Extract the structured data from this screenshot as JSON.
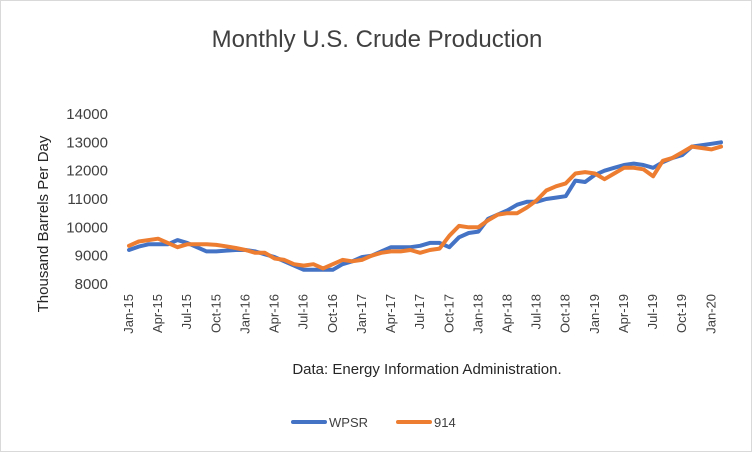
{
  "chart_data": {
    "type": "line",
    "title": "Monthly U.S. Crude Production",
    "ylabel": "Thousand Barrels Per Day",
    "note": "Data: Energy Information Administration.",
    "ylim": [
      8000,
      14000
    ],
    "yticks": [
      "8000",
      "9000",
      "10000",
      "11000",
      "12000",
      "13000",
      "14000"
    ],
    "grid": false,
    "legend_position": "bottom",
    "x": [
      "Jan-15",
      "Feb-15",
      "Mar-15",
      "Apr-15",
      "May-15",
      "Jun-15",
      "Jul-15",
      "Aug-15",
      "Sep-15",
      "Oct-15",
      "Nov-15",
      "Dec-15",
      "Jan-16",
      "Feb-16",
      "Mar-16",
      "Apr-16",
      "May-16",
      "Jun-16",
      "Jul-16",
      "Aug-16",
      "Sep-16",
      "Oct-16",
      "Nov-16",
      "Dec-16",
      "Jan-17",
      "Feb-17",
      "Mar-17",
      "Apr-17",
      "May-17",
      "Jun-17",
      "Jul-17",
      "Aug-17",
      "Sep-17",
      "Oct-17",
      "Nov-17",
      "Dec-17",
      "Jan-18",
      "Feb-18",
      "Mar-18",
      "Apr-18",
      "May-18",
      "Jun-18",
      "Jul-18",
      "Aug-18",
      "Sep-18",
      "Oct-18",
      "Nov-18",
      "Dec-18",
      "Jan-19",
      "Feb-19",
      "Mar-19",
      "Apr-19",
      "May-19",
      "Jun-19",
      "Jul-19",
      "Aug-19",
      "Sep-19",
      "Oct-19",
      "Nov-19",
      "Dec-19",
      "Jan-20",
      "Feb-20"
    ],
    "tick_labels": [
      "Jan-15",
      "Apr-15",
      "Jul-15",
      "Oct-15",
      "Jan-16",
      "Apr-16",
      "Jul-16",
      "Oct-16",
      "Jan-17",
      "Apr-17",
      "Jul-17",
      "Oct-17",
      "Jan-18",
      "Apr-18",
      "Jul-18",
      "Oct-18",
      "Jan-19",
      "Apr-19",
      "Jul-19",
      "Oct-19",
      "Jan-20"
    ],
    "series": [
      {
        "name": "WPSR",
        "color": "#4472C4",
        "values": [
          9200,
          9320,
          9400,
          9400,
          9400,
          9550,
          9450,
          9300,
          9150,
          9150,
          9180,
          9200,
          9200,
          9150,
          9050,
          8950,
          8800,
          8650,
          8500,
          8500,
          8500,
          8500,
          8700,
          8800,
          8950,
          9000,
          9150,
          9300,
          9300,
          9300,
          9350,
          9450,
          9450,
          9300,
          9650,
          9800,
          9850,
          10300,
          10450,
          10600,
          10800,
          10900,
          10900,
          11000,
          11050,
          11100,
          11650,
          11600,
          11850,
          12000,
          12100,
          12200,
          12250,
          12200,
          12100,
          12300,
          12450,
          12550,
          12850,
          12900,
          12950,
          13000
        ]
      },
      {
        "name": "914",
        "color": "#ED7D31",
        "values": [
          9350,
          9500,
          9550,
          9600,
          9450,
          9300,
          9400,
          9400,
          9400,
          9380,
          9330,
          9270,
          9200,
          9100,
          9100,
          8900,
          8850,
          8700,
          8650,
          8700,
          8550,
          8700,
          8850,
          8800,
          8850,
          9000,
          9100,
          9150,
          9150,
          9200,
          9100,
          9200,
          9250,
          9700,
          10050,
          10000,
          10000,
          10250,
          10450,
          10500,
          10500,
          10700,
          10950,
          11300,
          11450,
          11550,
          11900,
          11950,
          11900,
          11700,
          11900,
          12100,
          12100,
          12050,
          11800,
          12350,
          12450,
          12650,
          12850,
          12800,
          12750,
          12850
        ]
      }
    ]
  }
}
